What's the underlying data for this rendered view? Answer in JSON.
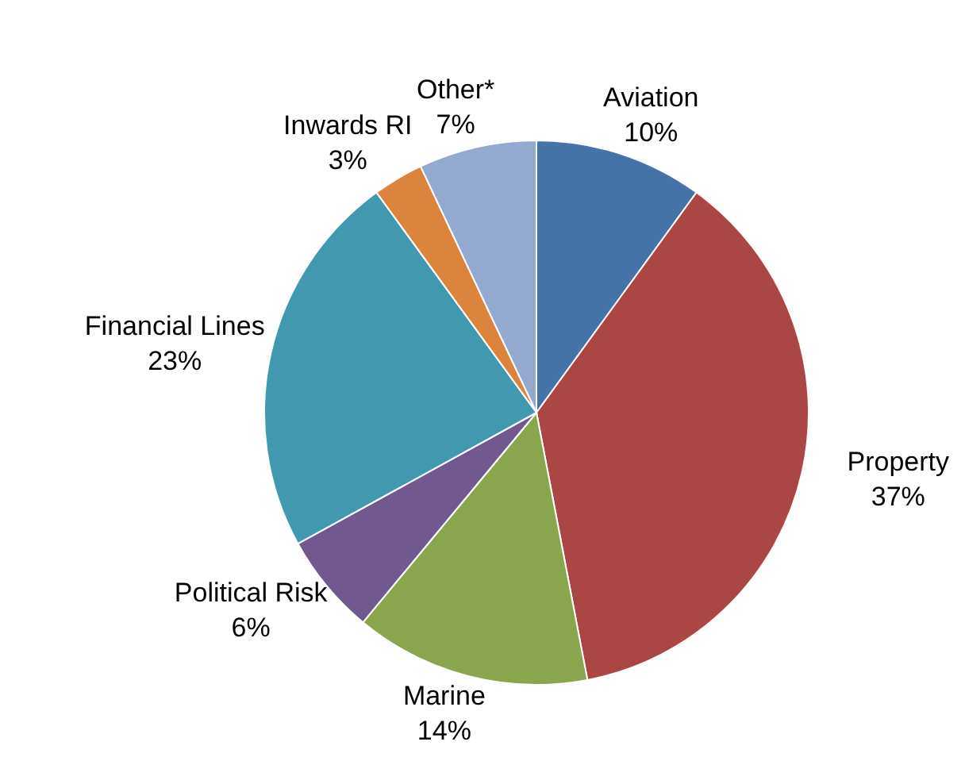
{
  "chart_data": {
    "type": "pie",
    "categories": [
      "Aviation",
      "Property",
      "Marine",
      "Political Risk",
      "Financial Lines",
      "Inwards RI",
      "Other*"
    ],
    "values": [
      10,
      37,
      14,
      6,
      23,
      3,
      7
    ],
    "colors": [
      "#4572a7",
      "#aa4643",
      "#89a54e",
      "#71588f",
      "#4198af",
      "#db843d",
      "#93a9cf"
    ],
    "value_labels": [
      "10%",
      "37%",
      "14%",
      "6%",
      "23%",
      "3%",
      "7%"
    ],
    "legend": false
  }
}
